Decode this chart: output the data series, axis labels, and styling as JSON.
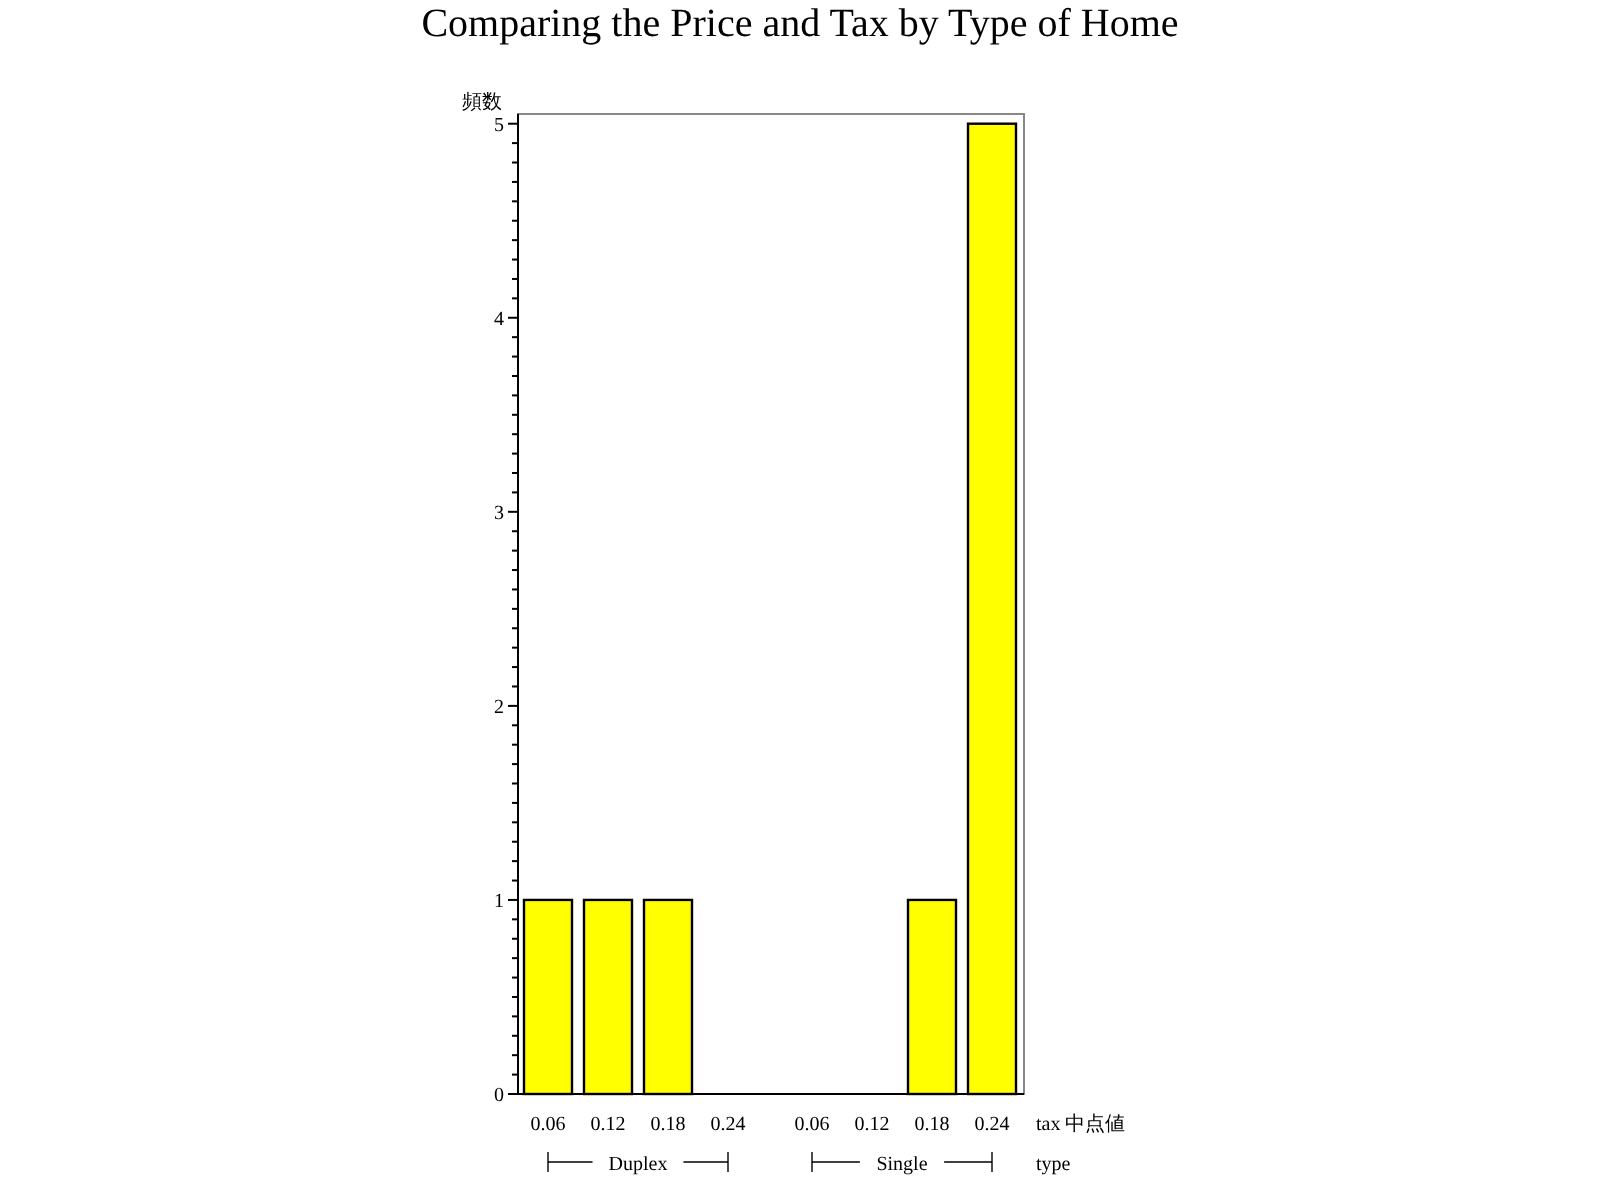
{
  "chart_data": {
    "type": "bar",
    "title": "Comparing the Price and Tax by Type of Home",
    "ylabel": "頻数",
    "xlabel": "tax 中点値",
    "categories": [
      "0.06",
      "0.12",
      "0.18",
      "0.24",
      "0.06",
      "0.12",
      "0.18",
      "0.24"
    ],
    "values": [
      1,
      1,
      1,
      0,
      0,
      0,
      1,
      5
    ],
    "color": "#ffff00",
    "ylim": [
      0,
      5.05
    ],
    "yticks": [
      0,
      1,
      2,
      3,
      4,
      5
    ],
    "annotations": [
      "Duplex",
      "Single",
      "type"
    ]
  }
}
